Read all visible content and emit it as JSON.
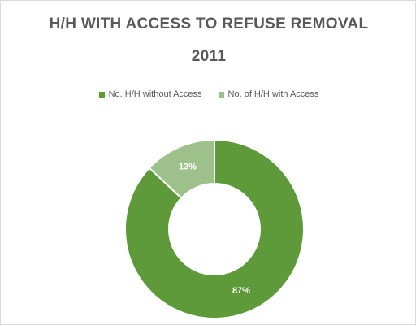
{
  "chart_data": {
    "type": "pie",
    "variant": "doughnut",
    "title_line1": "H/H WITH ACCESS TO REFUSE REMOVAL",
    "title_line2": "2011",
    "legend_position": "top",
    "categories": [
      "No. H/H without Access",
      "No. of H/H with Access"
    ],
    "values": [
      87,
      13
    ],
    "labels": [
      "87%",
      "13%"
    ],
    "colors": [
      "#5e9a39",
      "#9ec08a"
    ]
  }
}
